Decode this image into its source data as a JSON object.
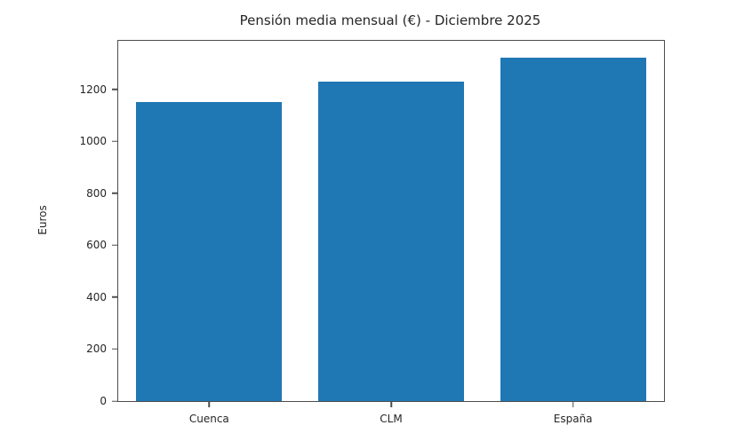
{
  "chart_data": {
    "type": "bar",
    "title": "Pensión media mensual (€) - Diciembre 2025",
    "xlabel": "",
    "ylabel": "Euros",
    "categories": [
      "Cuenca",
      "CLM",
      "España"
    ],
    "values": [
      1150,
      1230,
      1320
    ],
    "yticks": [
      0,
      200,
      400,
      600,
      800,
      1000,
      1200
    ],
    "ylim": [
      0,
      1386
    ],
    "bar_color": "#1f77b4",
    "bar_width_fraction": 0.8,
    "grid": false,
    "legend": false,
    "background_color": "#ffffff",
    "spine_color": "#4d4d4d",
    "text_color": "#262626"
  }
}
